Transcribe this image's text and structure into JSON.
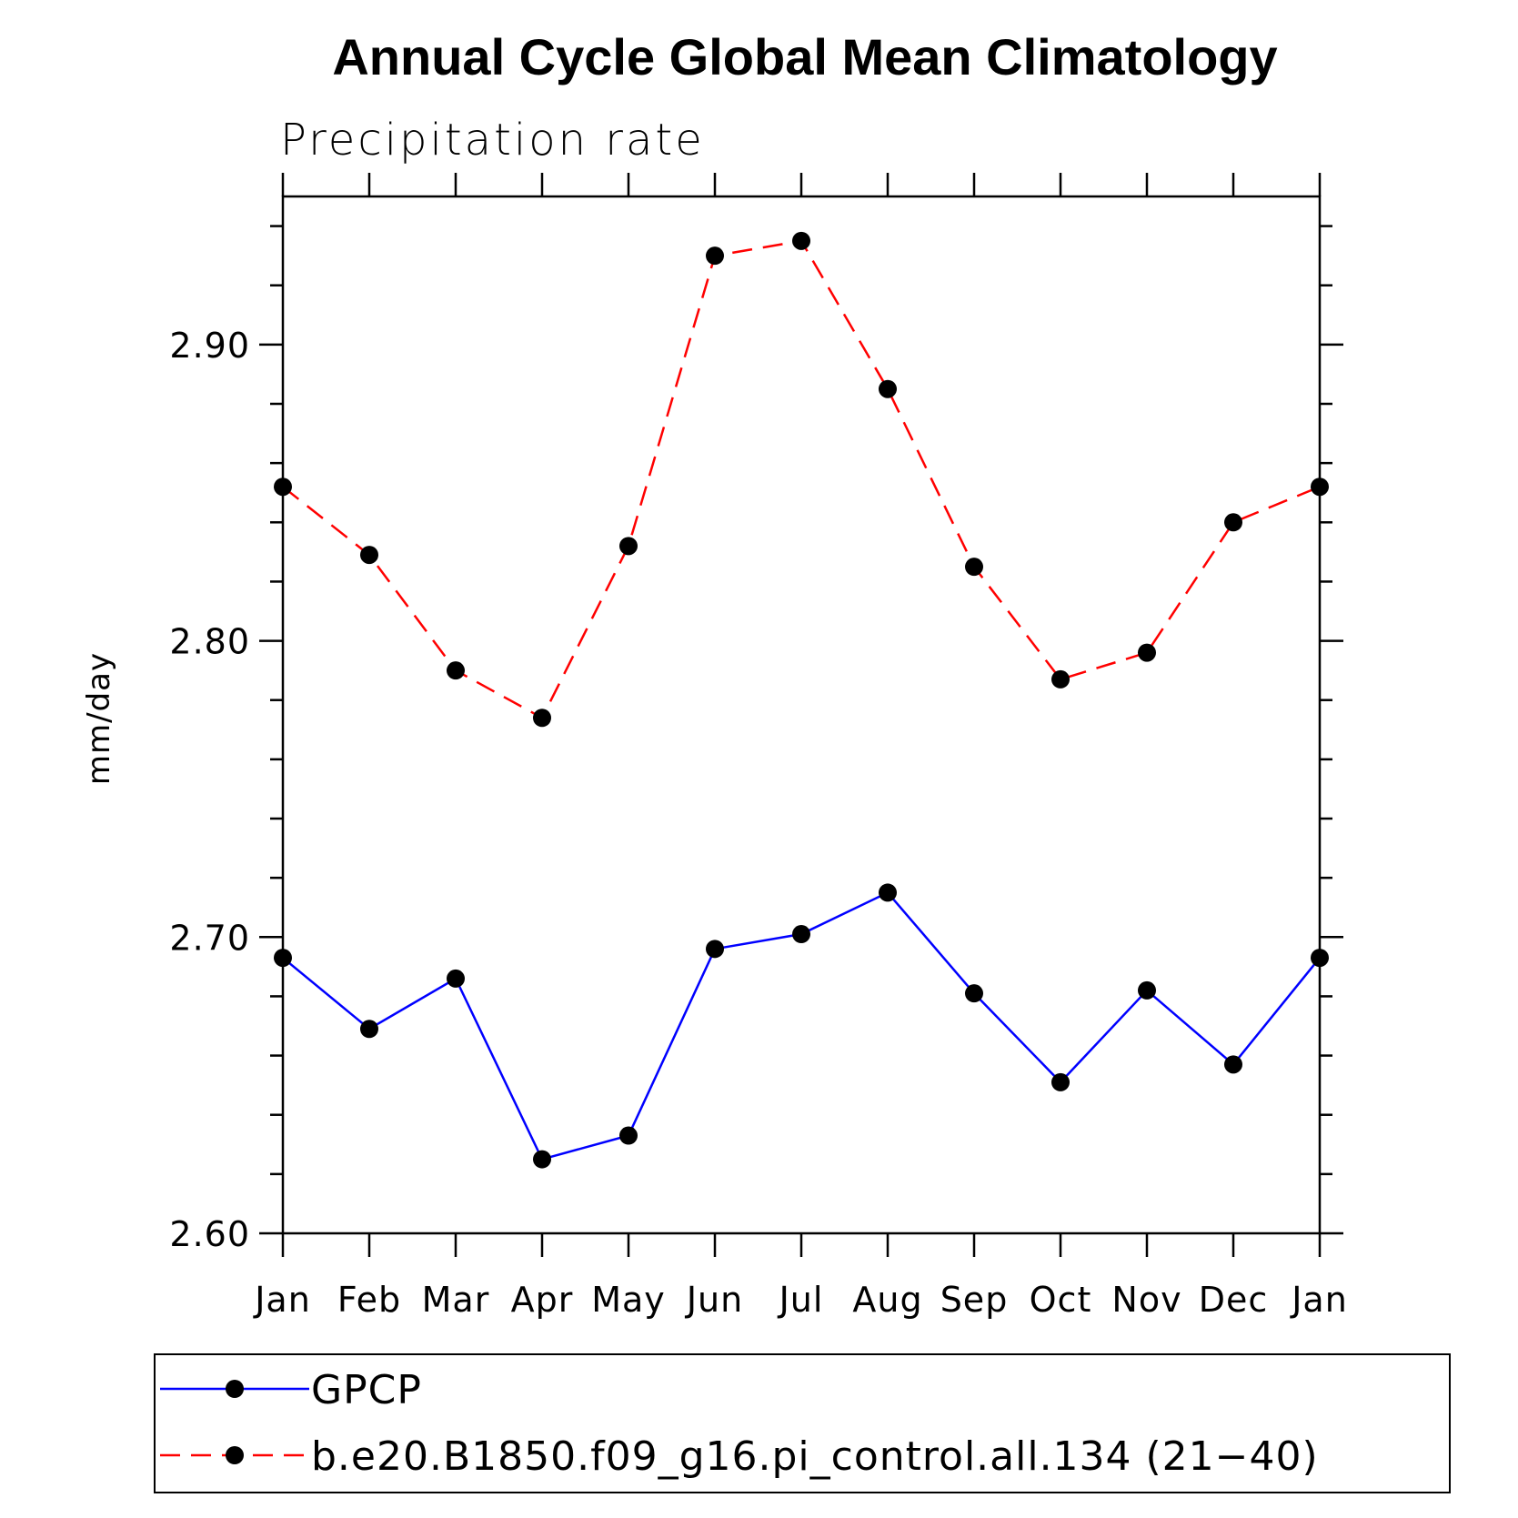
{
  "chart_data": {
    "type": "line",
    "title": "Annual Cycle Global Mean Climatology",
    "subtitle": "Precipitation rate",
    "ylabel": "mm/day",
    "categories": [
      "Jan",
      "Feb",
      "Mar",
      "Apr",
      "May",
      "Jun",
      "Jul",
      "Aug",
      "Sep",
      "Oct",
      "Nov",
      "Dec",
      "Jan"
    ],
    "ylim": [
      2.6,
      2.95
    ],
    "yticks": [
      "2.60",
      "2.70",
      "2.80",
      "2.90"
    ],
    "series": [
      {
        "name": "GPCP",
        "color": "#0000ff",
        "style": "solid",
        "values": [
          2.693,
          2.669,
          2.686,
          2.625,
          2.633,
          2.696,
          2.701,
          2.715,
          2.681,
          2.651,
          2.682,
          2.657,
          2.693
        ]
      },
      {
        "name": "b.e20.B1850.f09_g16.pi_control.all.134 (21−40)",
        "color": "#ff0000",
        "style": "dashed",
        "values": [
          2.852,
          2.829,
          2.79,
          2.774,
          2.832,
          2.93,
          2.935,
          2.885,
          2.825,
          2.787,
          2.796,
          2.84,
          2.852
        ]
      }
    ],
    "legend_position": "bottom"
  }
}
